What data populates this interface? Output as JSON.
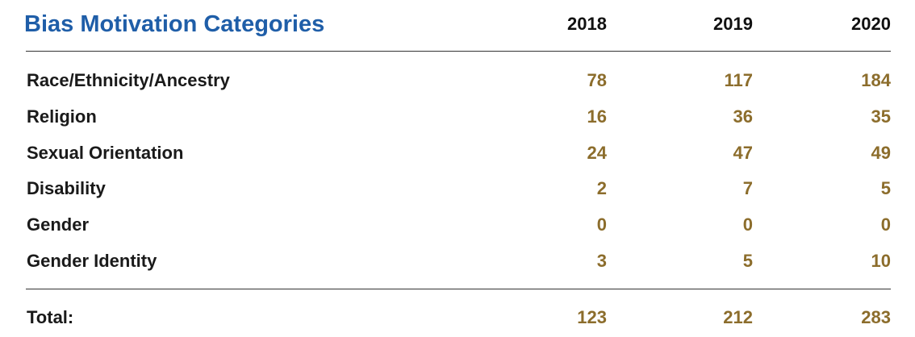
{
  "table": {
    "header": [
      "Bias Motivation Categories",
      "2018",
      "2019",
      "2020"
    ],
    "rows": [
      [
        "Race/Ethnicity/Ancestry",
        78,
        117,
        184
      ],
      [
        "Religion",
        16,
        36,
        35
      ],
      [
        "Sexual Orientation",
        24,
        47,
        49
      ],
      [
        "Disability",
        2,
        7,
        5
      ],
      [
        "Gender",
        0,
        0,
        0
      ],
      [
        "Gender Identity",
        3,
        5,
        10
      ]
    ],
    "total": [
      "Total:",
      123,
      212,
      283
    ]
  }
}
